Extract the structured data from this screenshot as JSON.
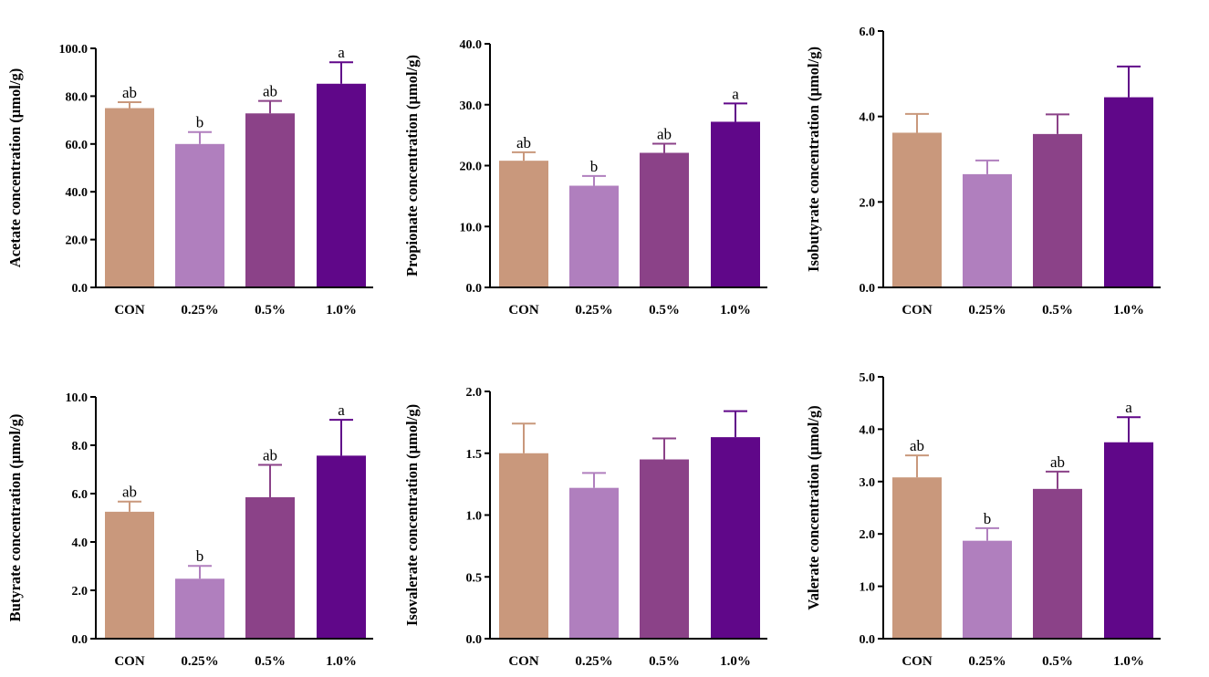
{
  "colors": [
    "#c9987c",
    "#b07fbe",
    "#8b4288",
    "#600789"
  ],
  "chart_data": [
    {
      "type": "bar",
      "ylabel": "Acetate concentration (µmol/g)",
      "categories": [
        "CON",
        "0.25%",
        "0.5%",
        "1.0%"
      ],
      "values": [
        75.0,
        60.0,
        72.8,
        85.2
      ],
      "errors": [
        2.5,
        5.0,
        5.2,
        9.0
      ],
      "labels": [
        "ab",
        "b",
        "ab",
        "a"
      ],
      "ylim": [
        0,
        100
      ],
      "ticks": [
        "0.0",
        "20.0",
        "40.0",
        "60.0",
        "80.0",
        "100.0"
      ]
    },
    {
      "type": "bar",
      "ylabel": "Propionate concentration (µmol/g)",
      "categories": [
        "CON",
        "0.25%",
        "0.5%",
        "1.0%"
      ],
      "values": [
        20.8,
        16.7,
        22.1,
        27.2
      ],
      "errors": [
        1.4,
        1.6,
        1.5,
        3.0
      ],
      "labels": [
        "ab",
        "b",
        "ab",
        "a"
      ],
      "ylim": [
        0,
        40
      ],
      "ticks": [
        "0.0",
        "10.0",
        "20.0",
        "30.0",
        "40.0"
      ]
    },
    {
      "type": "bar",
      "ylabel": "Isobutyrate concentration (µmol/g)",
      "categories": [
        "CON",
        "0.25%",
        "0.5%",
        "1.0%"
      ],
      "values": [
        3.62,
        2.65,
        3.59,
        4.45
      ],
      "errors": [
        0.44,
        0.32,
        0.46,
        0.72
      ],
      "labels": [
        "",
        "",
        "",
        ""
      ],
      "ylim": [
        0,
        6
      ],
      "ticks": [
        "0.0",
        "2.0",
        "4.0",
        "6.0"
      ]
    },
    {
      "type": "bar",
      "ylabel": "Butyrate concentration (µmol/g)",
      "categories": [
        "CON",
        "0.25%",
        "0.5%",
        "1.0%"
      ],
      "values": [
        5.25,
        2.48,
        5.85,
        7.57
      ],
      "errors": [
        0.42,
        0.53,
        1.34,
        1.48
      ],
      "labels": [
        "ab",
        "b",
        "ab",
        "a"
      ],
      "ylim": [
        0,
        10
      ],
      "ticks": [
        "0.0",
        "2.0",
        "4.0",
        "6.0",
        "8.0",
        "10.0"
      ]
    },
    {
      "type": "bar",
      "ylabel": "Isovalerate concentration (µmol/g)",
      "categories": [
        "CON",
        "0.25%",
        "0.5%",
        "1.0%"
      ],
      "values": [
        1.5,
        1.22,
        1.45,
        1.63
      ],
      "errors": [
        0.24,
        0.12,
        0.17,
        0.21
      ],
      "labels": [
        "",
        "",
        "",
        ""
      ],
      "ylim": [
        0,
        2
      ],
      "ticks": [
        "0.0",
        "0.5",
        "1.0",
        "1.5",
        "2.0"
      ]
    },
    {
      "type": "bar",
      "ylabel": "Valerate concentration (µmol/g)",
      "categories": [
        "CON",
        "0.25%",
        "0.5%",
        "1.0%"
      ],
      "values": [
        3.08,
        1.87,
        2.86,
        3.75
      ],
      "errors": [
        0.42,
        0.24,
        0.33,
        0.48
      ],
      "labels": [
        "ab",
        "b",
        "ab",
        "a"
      ],
      "ylim": [
        0,
        5
      ],
      "ticks": [
        "0.0",
        "1.0",
        "2.0",
        "3.0",
        "4.0",
        "5.0"
      ]
    }
  ]
}
